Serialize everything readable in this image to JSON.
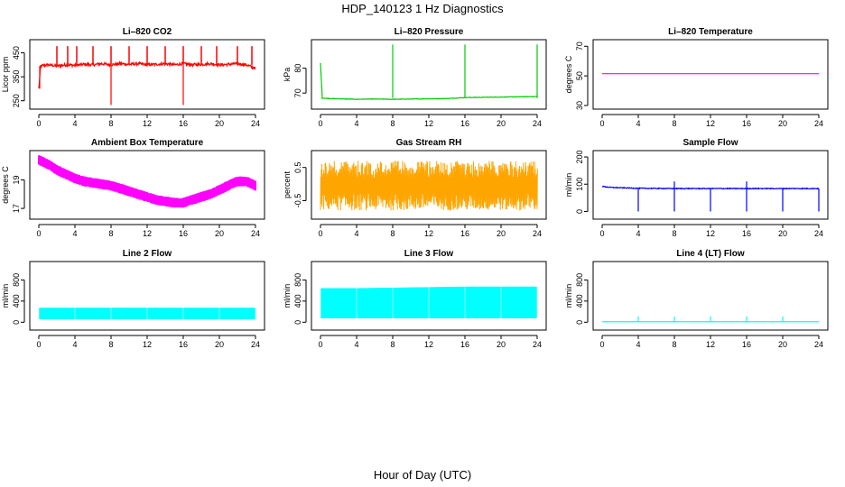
{
  "title": "HDP_140123  1 Hz Diagnostics",
  "xlabel": "Hour of Day (UTC)",
  "chart_data": [
    {
      "type": "line",
      "title": "Li–820 CO2",
      "ylabel": "Licor ppm",
      "color": "#ff0000",
      "x": [
        0,
        0.2,
        1,
        2,
        3,
        4,
        5,
        6,
        7,
        8,
        9,
        10,
        11,
        12,
        13,
        14,
        15,
        16,
        17,
        18,
        19,
        20,
        21,
        22,
        23,
        24
      ],
      "y": [
        300,
        395,
        400,
        395,
        400,
        398,
        402,
        400,
        405,
        400,
        405,
        402,
        405,
        400,
        402,
        405,
        400,
        405,
        400,
        402,
        405,
        400,
        402,
        405,
        400,
        385
      ],
      "xlim": [
        0,
        24
      ],
      "ylim": [
        230,
        490
      ],
      "xticks": [
        0,
        4,
        8,
        12,
        16,
        20,
        24
      ],
      "yticks": [
        250,
        350,
        450
      ]
    },
    {
      "type": "line",
      "title": "Li–820 Pressure",
      "ylabel": "kPa",
      "color": "#00cc00",
      "x": [
        0,
        0.2,
        1,
        4,
        6,
        8,
        10,
        12,
        14,
        16,
        18,
        20,
        22,
        24
      ],
      "y": [
        82,
        68,
        67.8,
        67.5,
        67.6,
        67.5,
        67.6,
        67.7,
        67.8,
        68.2,
        68.3,
        68.4,
        68.5,
        68.6
      ],
      "xlim": [
        0,
        24
      ],
      "ylim": [
        65,
        90
      ],
      "xticks": [
        0,
        4,
        8,
        12,
        16,
        20,
        24
      ],
      "yticks": [
        70,
        80
      ]
    },
    {
      "type": "line",
      "title": "Li–820 Temperature",
      "ylabel": "degrees C",
      "color": "#ff00ff",
      "x": [
        0,
        24
      ],
      "y": [
        51.5,
        51.5
      ],
      "xlim": [
        0,
        24
      ],
      "ylim": [
        30,
        72
      ],
      "xticks": [
        0,
        4,
        8,
        12,
        16,
        20,
        24
      ],
      "yticks": [
        30,
        50,
        70
      ]
    },
    {
      "type": "line",
      "title": "Ambient Box Temperature",
      "ylabel": "degrees C",
      "color": "#ff00ff",
      "x": [
        0,
        1,
        2,
        3,
        4,
        5,
        6,
        7,
        8,
        9,
        10,
        11,
        12,
        13,
        14,
        15,
        16,
        17,
        18,
        19,
        20,
        21,
        22,
        23,
        24
      ],
      "y": [
        20.4,
        20.1,
        19.7,
        19.4,
        19.1,
        18.9,
        18.8,
        18.7,
        18.6,
        18.4,
        18.2,
        18.0,
        17.8,
        17.6,
        17.5,
        17.4,
        17.4,
        17.6,
        17.8,
        18.0,
        18.3,
        18.6,
        18.9,
        18.9,
        18.6
      ],
      "xlim": [
        0,
        24
      ],
      "ylim": [
        16.5,
        20.8
      ],
      "xticks": [
        0,
        4,
        8,
        12,
        16,
        20,
        24
      ],
      "yticks": [
        17,
        19
      ]
    },
    {
      "type": "line",
      "title": "Gas Stream RH",
      "ylabel": "percent",
      "color": "#ffa500",
      "x": [
        0,
        4,
        8,
        12,
        16,
        20,
        24
      ],
      "ymin": [
        -0.8,
        -0.8,
        -0.8,
        -0.8,
        -0.8,
        -0.8,
        -0.8
      ],
      "ymax": [
        0.7,
        0.7,
        0.7,
        0.7,
        0.7,
        0.7,
        0.7
      ],
      "xlim": [
        0,
        24
      ],
      "ylim": [
        -0.95,
        0.9
      ],
      "xticks": [
        0,
        4,
        8,
        12,
        16,
        20,
        24
      ],
      "yticks": [
        -0.5,
        0.5
      ]
    },
    {
      "type": "line",
      "title": "Sample Flow",
      "ylabel": "ml/min",
      "color": "#0000ff",
      "x": [
        0,
        1,
        4,
        8,
        12,
        16,
        20,
        24
      ],
      "y": [
        92,
        88,
        85,
        84,
        84,
        84,
        84,
        84
      ],
      "xlim": [
        0,
        24
      ],
      "ylim": [
        -15,
        210
      ],
      "xticks": [
        0,
        4,
        8,
        12,
        16,
        20,
        24
      ],
      "yticks": [
        0,
        100,
        200
      ]
    },
    {
      "type": "area",
      "title": "Line 2 Flow",
      "ylabel": "ml/min",
      "color": "#00ffff",
      "x": [
        0,
        24
      ],
      "ymin": [
        60,
        60
      ],
      "ymax": [
        270,
        270
      ],
      "xlim": [
        0,
        24
      ],
      "ylim": [
        -80,
        1080
      ],
      "xticks": [
        0,
        4,
        8,
        12,
        16,
        20,
        24
      ],
      "yticks": [
        0,
        400,
        800
      ]
    },
    {
      "type": "area",
      "title": "Line 3 Flow",
      "ylabel": "ml/min",
      "color": "#00ffff",
      "x": [
        0,
        4,
        8,
        12,
        16,
        20,
        24
      ],
      "ymin": [
        80,
        80,
        80,
        80,
        80,
        80,
        80
      ],
      "ymax": [
        640,
        640,
        650,
        660,
        670,
        670,
        670
      ],
      "xlim": [
        0,
        24
      ],
      "ylim": [
        -80,
        1080
      ],
      "xticks": [
        0,
        4,
        8,
        12,
        16,
        20,
        24
      ],
      "yticks": [
        0,
        400,
        800
      ]
    },
    {
      "type": "line",
      "title": "Line 4 (LT) Flow",
      "ylabel": "ml/min",
      "color": "#00ffff",
      "x": [
        0,
        24
      ],
      "y": [
        10,
        10
      ],
      "xlim": [
        0,
        24
      ],
      "ylim": [
        -80,
        1080
      ],
      "xticks": [
        0,
        4,
        8,
        12,
        16,
        20,
        24
      ],
      "yticks": [
        0,
        400,
        800
      ]
    }
  ]
}
